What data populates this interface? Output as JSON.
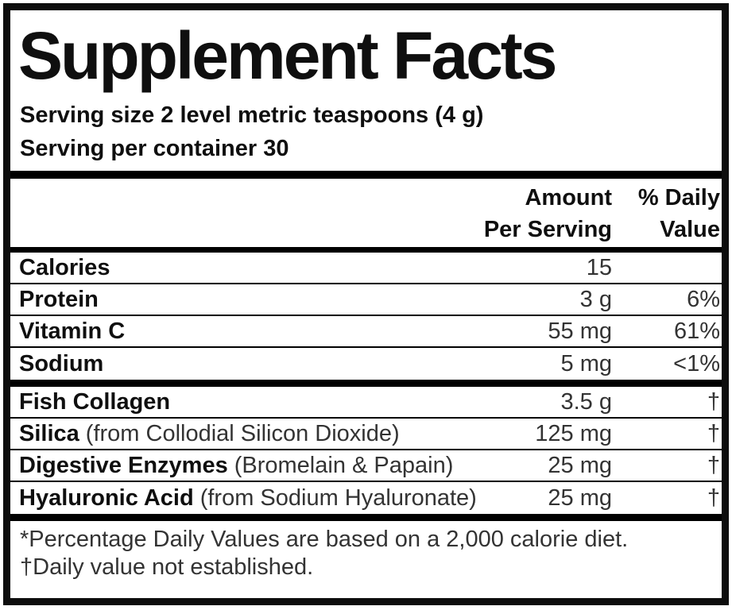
{
  "label": {
    "title": "Supplement Facts",
    "serving_size": "Serving size 2 level metric teaspoons (4 g)",
    "servings_per_container": "Serving per container 30",
    "header": {
      "amount_line1": "Amount",
      "amount_line2": "Per Serving",
      "dv_line1": "% Daily",
      "dv_line2": "Value"
    },
    "rows": [
      {
        "name": "Calories",
        "note": "",
        "amount": "15",
        "dv": ""
      },
      {
        "name": "Protein",
        "note": "",
        "amount": "3 g",
        "dv": "6%"
      },
      {
        "name": "Vitamin C",
        "note": "",
        "amount": "55 mg",
        "dv": "61%"
      },
      {
        "name": "Sodium",
        "note": "",
        "amount": "5 mg",
        "dv": "<1%"
      },
      {
        "name": "Fish Collagen",
        "note": "",
        "amount": "3.5 g",
        "dv": "†"
      },
      {
        "name": "Silica",
        "note": "(from Collodial Silicon Dioxide)",
        "amount": "125 mg",
        "dv": "†"
      },
      {
        "name": "Digestive Enzymes",
        "note": "(Bromelain & Papain)",
        "amount": "25 mg",
        "dv": "†"
      },
      {
        "name": "Hyaluronic Acid",
        "note": "(from Sodium Hyaluronate)",
        "amount": "25 mg",
        "dv": "†"
      }
    ],
    "footnotes": [
      "*Percentage Daily Values are based on a 2,000 calorie diet.",
      "†Daily value not established."
    ],
    "colors": {
      "text": "#111111",
      "border": "#0d0d0d",
      "background": "#ffffff"
    }
  }
}
